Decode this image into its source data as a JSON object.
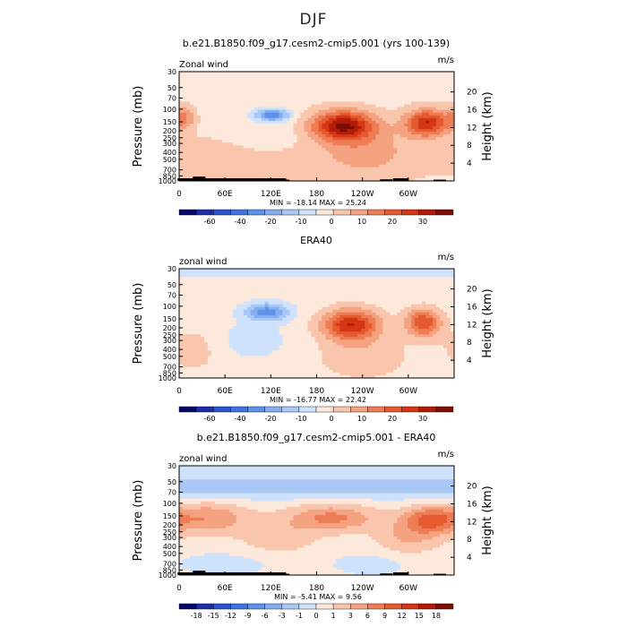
{
  "figure": {
    "title": "DJF"
  },
  "chart_data": [
    {
      "type": "heatmap",
      "title": "b.e21.B1850.f09_g17.cesm2-cmip5.001 (yrs 100-139)",
      "left_label": "Zonal wind",
      "units": "m/s",
      "ylabel": "Pressure (mb)",
      "right_ylabel": "Height (km)",
      "x_ticks": [
        "0",
        "60E",
        "120E",
        "180",
        "120W",
        "60W"
      ],
      "x_tick_lon": [
        0,
        60,
        120,
        180,
        240,
        300
      ],
      "y_ticks": [
        "30",
        "50",
        "70",
        "100",
        "150",
        "200",
        "250",
        "300",
        "400",
        "500",
        "700",
        "850",
        "1000"
      ],
      "y_tick_p": [
        30,
        50,
        70,
        100,
        150,
        200,
        250,
        300,
        400,
        500,
        700,
        850,
        1000
      ],
      "right_ticks": [
        "20",
        "16",
        "12",
        "8",
        "4"
      ],
      "right_tick_km": [
        20,
        16,
        12,
        8,
        4
      ],
      "xlim": [
        0,
        360
      ],
      "ylim": [
        1000,
        30
      ],
      "y_scale": "log",
      "min_max": "MIN = -18.14   MAX =  25.24",
      "colorbar": {
        "labels": [
          "-60",
          "-40",
          "-20",
          "-10",
          "0",
          "10",
          "20",
          "30"
        ],
        "colors": [
          "#08086b",
          "#1c2fa3",
          "#2a55cc",
          "#3d74e0",
          "#5d92ea",
          "#84aef0",
          "#aac8f6",
          "#cfe2fb",
          "#fde8dc",
          "#f9c6ad",
          "#f4a280",
          "#ee7d55",
          "#e65a30",
          "#d43616",
          "#b01c08",
          "#800d03"
        ]
      },
      "features": [
        {
          "lon": 122,
          "p": 120,
          "value": -18,
          "sx": 16,
          "sy": 0.14
        },
        {
          "lon": 110,
          "p": 250,
          "value": -4,
          "sx": 30,
          "sy": 0.35
        },
        {
          "lon": 215,
          "p": 170,
          "value": 25,
          "sx": 28,
          "sy": 0.33
        },
        {
          "lon": 325,
          "p": 155,
          "value": 21,
          "sx": 20,
          "sy": 0.3
        },
        {
          "lon": 245,
          "p": 400,
          "value": 7,
          "sx": 45,
          "sy": 0.6
        },
        {
          "lon": 5,
          "p": 130,
          "value": 10,
          "sx": 10,
          "sy": 0.25
        },
        {
          "lon": 80,
          "p": 500,
          "value": 4,
          "sx": 60,
          "sy": 0.5
        }
      ],
      "background": 3,
      "top_value": -3,
      "terrain": [
        [
          5,
          1000,
          920
        ],
        [
          25,
          900,
          870
        ],
        [
          45,
          960,
          940
        ],
        [
          75,
          1000,
          950
        ],
        [
          95,
          1000,
          920
        ],
        [
          110,
          1000,
          950
        ],
        [
          135,
          1000,
          960
        ],
        [
          270,
          1000,
          950
        ],
        [
          290,
          1000,
          940
        ],
        [
          340,
          1000,
          960
        ]
      ]
    },
    {
      "type": "heatmap",
      "title": "ERA40",
      "left_label": "zonal wind",
      "units": "m/s",
      "ylabel": "Pressure (mb)",
      "right_ylabel": "Height (km)",
      "x_ticks": [
        "0",
        "60E",
        "120E",
        "180",
        "120W",
        "60W"
      ],
      "x_tick_lon": [
        0,
        60,
        120,
        180,
        240,
        300
      ],
      "y_ticks": [
        "30",
        "50",
        "70",
        "100",
        "150",
        "200",
        "250",
        "300",
        "400",
        "500",
        "700",
        "850",
        "1000"
      ],
      "y_tick_p": [
        30,
        50,
        70,
        100,
        150,
        200,
        250,
        300,
        400,
        500,
        700,
        850,
        1000
      ],
      "right_ticks": [
        "20",
        "16",
        "12",
        "8",
        "4"
      ],
      "right_tick_km": [
        20,
        16,
        12,
        8,
        4
      ],
      "xlim": [
        0,
        360
      ],
      "ylim": [
        1000,
        30
      ],
      "y_scale": "log",
      "min_max": "MIN = -16.77   MAX =  22.42",
      "colorbar": {
        "labels": [
          "-60",
          "-40",
          "-20",
          "-10",
          "0",
          "10",
          "20",
          "30"
        ],
        "colors": [
          "#08086b",
          "#1c2fa3",
          "#2a55cc",
          "#3d74e0",
          "#5d92ea",
          "#84aef0",
          "#aac8f6",
          "#cfe2fb",
          "#fde8dc",
          "#f9c6ad",
          "#f4a280",
          "#ee7d55",
          "#e65a30",
          "#d43616",
          "#b01c08",
          "#800d03"
        ]
      },
      "features": [
        {
          "lon": 115,
          "p": 120,
          "value": -16,
          "sx": 20,
          "sy": 0.2
        },
        {
          "lon": 95,
          "p": 300,
          "value": -4,
          "sx": 35,
          "sy": 0.45
        },
        {
          "lon": 225,
          "p": 180,
          "value": 22,
          "sx": 26,
          "sy": 0.35
        },
        {
          "lon": 320,
          "p": 170,
          "value": 18,
          "sx": 16,
          "sy": 0.32
        },
        {
          "lon": 240,
          "p": 500,
          "value": 5,
          "sx": 40,
          "sy": 0.5
        },
        {
          "lon": 20,
          "p": 400,
          "value": 4,
          "sx": 25,
          "sy": 0.5
        }
      ],
      "background": 2,
      "top_value": -3,
      "terrain": []
    },
    {
      "type": "heatmap",
      "title": "b.e21.B1850.f09_g17.cesm2-cmip5.001 - ERA40",
      "left_label": "zonal wind",
      "units": "m/s",
      "ylabel": "Pressure (mb)",
      "right_ylabel": "Height (km)",
      "x_ticks": [
        "0",
        "60E",
        "120E",
        "180",
        "120W",
        "60W"
      ],
      "x_tick_lon": [
        0,
        60,
        120,
        180,
        240,
        300
      ],
      "y_ticks": [
        "30",
        "50",
        "70",
        "100",
        "150",
        "200",
        "250",
        "300",
        "400",
        "500",
        "700",
        "850",
        "1000"
      ],
      "y_tick_p": [
        30,
        50,
        70,
        100,
        150,
        200,
        250,
        300,
        400,
        500,
        700,
        850,
        1000
      ],
      "right_ticks": [
        "20",
        "16",
        "12",
        "8",
        "4"
      ],
      "right_tick_km": [
        20,
        16,
        12,
        8,
        4
      ],
      "xlim": [
        0,
        360
      ],
      "ylim": [
        1000,
        30
      ],
      "y_scale": "log",
      "min_max": "MIN = -5.41   MAX =   9.56",
      "colorbar": {
        "labels": [
          "-18",
          "-15",
          "-12",
          "-9",
          "-6",
          "-3",
          "-1",
          "0",
          "1",
          "3",
          "6",
          "9",
          "12",
          "15",
          "18"
        ],
        "colors": [
          "#08086b",
          "#1c2fa3",
          "#2a55cc",
          "#3d74e0",
          "#5d92ea",
          "#84aef0",
          "#aac8f6",
          "#cfe2fb",
          "#fde8dc",
          "#f9c6ad",
          "#f4a280",
          "#ee7d55",
          "#e65a30",
          "#d43616",
          "#b01c08",
          "#800d03"
        ]
      },
      "features": [
        {
          "lon": 180,
          "p": 60,
          "value": -5,
          "sx": 400,
          "sy": 0.25
        },
        {
          "lon": 200,
          "p": 160,
          "value": 7,
          "sx": 40,
          "sy": 0.3
        },
        {
          "lon": 40,
          "p": 160,
          "value": 6,
          "sx": 35,
          "sy": 0.35
        },
        {
          "lon": 330,
          "p": 170,
          "value": 9,
          "sx": 25,
          "sy": 0.3
        },
        {
          "lon": 130,
          "p": 300,
          "value": 3,
          "sx": 35,
          "sy": 0.4
        },
        {
          "lon": 300,
          "p": 300,
          "value": 4,
          "sx": 30,
          "sy": 0.4
        },
        {
          "lon": 60,
          "p": 700,
          "value": -2,
          "sx": 50,
          "sy": 0.3
        },
        {
          "lon": 250,
          "p": 700,
          "value": -2,
          "sx": 40,
          "sy": 0.3
        }
      ],
      "background": 1,
      "top_value": -1,
      "terrain": [
        [
          5,
          1000,
          920
        ],
        [
          25,
          900,
          870
        ],
        [
          45,
          960,
          940
        ],
        [
          75,
          1000,
          950
        ],
        [
          95,
          1000,
          920
        ],
        [
          110,
          1000,
          950
        ],
        [
          135,
          1000,
          960
        ],
        [
          270,
          1000,
          950
        ],
        [
          290,
          1000,
          940
        ],
        [
          340,
          1000,
          960
        ]
      ]
    }
  ]
}
